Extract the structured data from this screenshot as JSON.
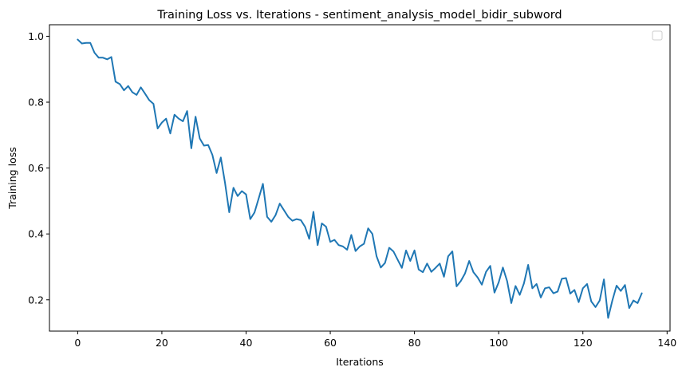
{
  "chart_data": {
    "type": "line",
    "title": "Training Loss vs. Iterations - sentiment_analysis_model_bidir_subword",
    "xlabel": "Iterations",
    "ylabel": "Training loss",
    "xlim": [
      -6.7,
      140.7
    ],
    "ylim": [
      0.105,
      1.035
    ],
    "xticks": [
      0,
      20,
      40,
      60,
      80,
      100,
      120,
      140
    ],
    "yticks": [
      0.2,
      0.4,
      0.6,
      0.8,
      1.0
    ],
    "xtick_labels": [
      "0",
      "20",
      "40",
      "60",
      "80",
      "100",
      "120",
      "140"
    ],
    "ytick_labels": [
      "0.2",
      "0.4",
      "0.6",
      "0.8",
      "1.0"
    ],
    "grid": false,
    "legend": "top-right (empty)",
    "series": [
      {
        "color": "#1f77b4",
        "x": [
          0,
          1,
          2,
          3,
          4,
          5,
          6,
          7,
          8,
          9,
          10,
          11,
          12,
          13,
          14,
          15,
          16,
          17,
          18,
          19,
          20,
          21,
          22,
          23,
          24,
          25,
          26,
          27,
          28,
          29,
          30,
          31,
          32,
          33,
          34,
          35,
          36,
          37,
          38,
          39,
          40,
          41,
          42,
          43,
          44,
          45,
          46,
          47,
          48,
          49,
          50,
          51,
          52,
          53,
          54,
          55,
          56,
          57,
          58,
          59,
          60,
          61,
          62,
          63,
          64,
          65,
          66,
          67,
          68,
          69,
          70,
          71,
          72,
          73,
          74,
          75,
          76,
          77,
          78,
          79,
          80,
          81,
          82,
          83,
          84,
          85,
          86,
          87,
          88,
          89,
          90,
          91,
          92,
          93,
          94,
          95,
          96,
          97,
          98,
          99,
          100,
          101,
          102,
          103,
          104,
          105,
          106,
          107,
          108,
          109,
          110,
          111,
          112,
          113,
          114,
          115,
          116,
          117,
          118,
          119,
          120,
          121,
          122,
          123,
          124,
          125,
          126,
          127,
          128,
          129,
          130,
          131,
          132,
          133,
          134
        ],
        "values": [
          0.99,
          0.978,
          0.98,
          0.98,
          0.95,
          0.935,
          0.935,
          0.93,
          0.937,
          0.862,
          0.855,
          0.836,
          0.849,
          0.83,
          0.822,
          0.845,
          0.826,
          0.806,
          0.795,
          0.72,
          0.738,
          0.75,
          0.705,
          0.762,
          0.75,
          0.742,
          0.773,
          0.66,
          0.756,
          0.69,
          0.668,
          0.67,
          0.64,
          0.585,
          0.632,
          0.555,
          0.466,
          0.54,
          0.515,
          0.53,
          0.52,
          0.445,
          0.465,
          0.508,
          0.552,
          0.452,
          0.437,
          0.457,
          0.492,
          0.472,
          0.452,
          0.44,
          0.445,
          0.442,
          0.422,
          0.385,
          0.467,
          0.366,
          0.432,
          0.422,
          0.376,
          0.382,
          0.366,
          0.362,
          0.352,
          0.397,
          0.348,
          0.362,
          0.37,
          0.417,
          0.4,
          0.332,
          0.298,
          0.312,
          0.358,
          0.347,
          0.322,
          0.297,
          0.35,
          0.318,
          0.35,
          0.292,
          0.284,
          0.31,
          0.285,
          0.297,
          0.31,
          0.27,
          0.332,
          0.347,
          0.241,
          0.257,
          0.28,
          0.318,
          0.284,
          0.268,
          0.246,
          0.285,
          0.303,
          0.222,
          0.253,
          0.298,
          0.257,
          0.19,
          0.242,
          0.215,
          0.25,
          0.306,
          0.235,
          0.248,
          0.207,
          0.235,
          0.238,
          0.22,
          0.225,
          0.264,
          0.266,
          0.219,
          0.23,
          0.193,
          0.235,
          0.248,
          0.195,
          0.178,
          0.198,
          0.262,
          0.145,
          0.198,
          0.243,
          0.227,
          0.245,
          0.175,
          0.198,
          0.19,
          0.22
        ]
      }
    ]
  }
}
